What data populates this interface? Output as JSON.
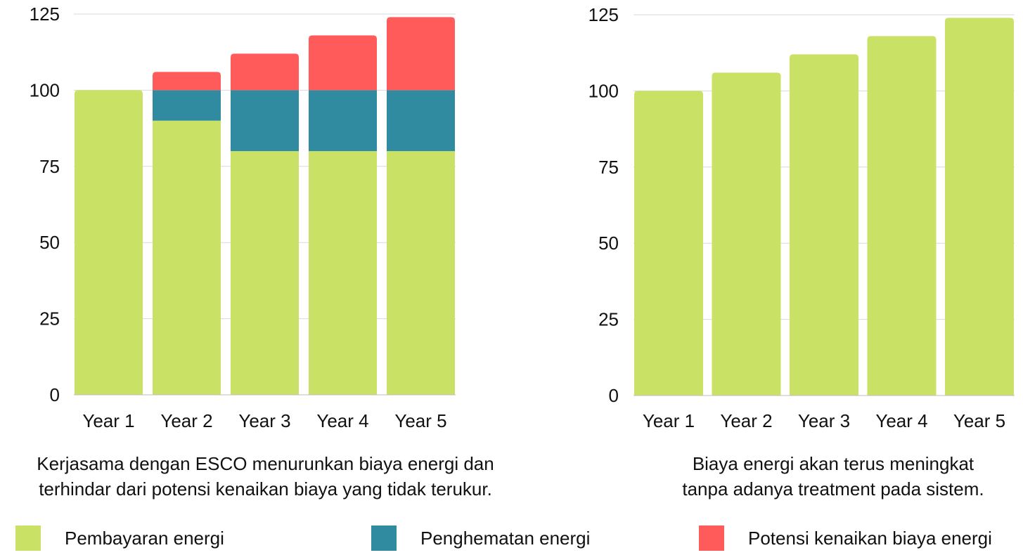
{
  "chart_data": [
    {
      "type": "bar",
      "stacked": true,
      "categories": [
        "Year 1",
        "Year 2",
        "Year 3",
        "Year 4",
        "Year 5"
      ],
      "series": [
        {
          "name": "Pembayaran energi",
          "key": "pembayaran",
          "values": [
            100,
            90,
            80,
            80,
            80
          ]
        },
        {
          "name": "Penghematan energi",
          "key": "penghematan",
          "values": [
            0,
            10,
            20,
            20,
            20
          ]
        },
        {
          "name": "Potensi kenaikan biaya energi",
          "key": "potensi",
          "values": [
            0,
            6,
            12,
            18,
            24
          ]
        }
      ],
      "ylim": [
        0,
        125
      ],
      "yticks": [
        0,
        25,
        50,
        75,
        100,
        125
      ],
      "grid": true,
      "caption": [
        "Kerjasama dengan ESCO menurunkan biaya energi dan",
        "terhindar dari potensi kenaikan biaya yang tidak terukur."
      ]
    },
    {
      "type": "bar",
      "stacked": false,
      "categories": [
        "Year 1",
        "Year 2",
        "Year 3",
        "Year 4",
        "Year 5"
      ],
      "series": [
        {
          "name": "Pembayaran energi",
          "key": "pembayaran",
          "values": [
            100,
            106,
            112,
            118,
            124
          ]
        }
      ],
      "ylim": [
        0,
        125
      ],
      "yticks": [
        0,
        25,
        50,
        75,
        100,
        125
      ],
      "grid": true,
      "caption": [
        "Biaya energi akan terus meningkat",
        "tanpa adanya treatment pada sistem."
      ]
    }
  ],
  "colors": {
    "pembayaran": "#c9e265",
    "penghematan": "#318ba0",
    "potensi": "#ff5b5b",
    "grid": "#d9d9d9"
  },
  "legend": [
    {
      "label": "Pembayaran energi",
      "key": "pembayaran"
    },
    {
      "label": "Penghematan energi",
      "key": "penghematan"
    },
    {
      "label": "Potensi kenaikan biaya energi",
      "key": "potensi"
    }
  ]
}
